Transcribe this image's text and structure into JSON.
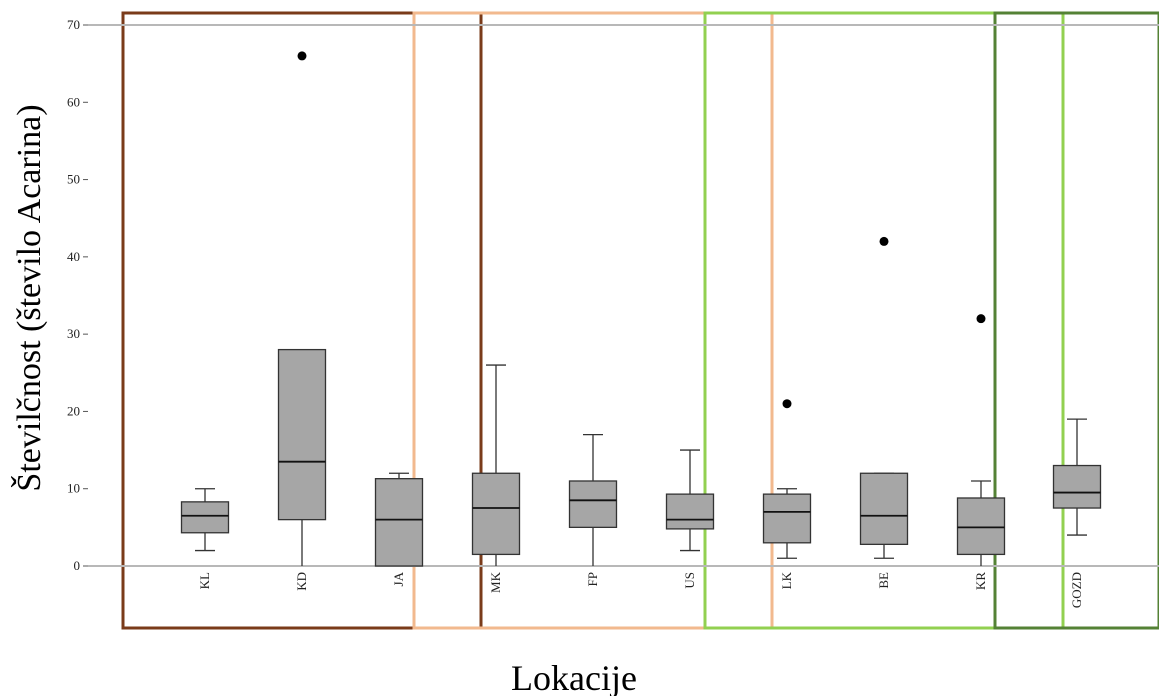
{
  "chart_data": {
    "type": "box",
    "xlabel": "Lokacije",
    "ylabel": "Številčnost (število Acarina)",
    "ylim": [
      0,
      70
    ],
    "yticks": [
      0,
      10,
      20,
      30,
      40,
      50,
      60,
      70
    ],
    "grid": false,
    "categories": [
      "KL",
      "KD",
      "JA",
      "MK",
      "FP",
      "US",
      "LK",
      "BE",
      "KR",
      "GOZD"
    ],
    "boxes": [
      {
        "name": "KL",
        "min": 2,
        "q1": 4.3,
        "median": 6.5,
        "q3": 8.3,
        "max": 10,
        "outliers": []
      },
      {
        "name": "KD",
        "min": 0,
        "q1": 6,
        "median": 13.5,
        "q3": 28,
        "max": 28,
        "outliers": [
          66
        ]
      },
      {
        "name": "JA",
        "min": 0,
        "q1": 0,
        "median": 6,
        "q3": 11.3,
        "max": 12,
        "outliers": []
      },
      {
        "name": "MK",
        "min": 0,
        "q1": 1.5,
        "median": 7.5,
        "q3": 12,
        "max": 26,
        "outliers": []
      },
      {
        "name": "FP",
        "min": 0,
        "q1": 5,
        "median": 8.5,
        "q3": 11,
        "max": 17,
        "outliers": []
      },
      {
        "name": "US",
        "min": 2,
        "q1": 4.8,
        "median": 6,
        "q3": 9.3,
        "max": 15,
        "outliers": []
      },
      {
        "name": "LK",
        "min": 1,
        "q1": 3,
        "median": 7,
        "q3": 9.3,
        "max": 10,
        "outliers": [
          21
        ]
      },
      {
        "name": "BE",
        "min": 1,
        "q1": 2.8,
        "median": 6.5,
        "q3": 12,
        "max": 12,
        "outliers": [
          42
        ]
      },
      {
        "name": "KR",
        "min": 0,
        "q1": 1.5,
        "median": 5,
        "q3": 8.8,
        "max": 11,
        "outliers": [
          32
        ]
      },
      {
        "name": "GOZD",
        "min": 4,
        "q1": 7.5,
        "median": 9.5,
        "q3": 13,
        "max": 19,
        "outliers": []
      }
    ],
    "groups": [
      {
        "categories": [
          "KL",
          "KD",
          "JA"
        ],
        "color": "#7a3b1a"
      },
      {
        "categories": [
          "MK",
          "FP",
          "US"
        ],
        "color": "#f2b98e"
      },
      {
        "categories": [
          "LK",
          "BE",
          "KR"
        ],
        "color": "#92d050"
      },
      {
        "categories": [
          "GOZD"
        ],
        "color": "#548235"
      }
    ],
    "colors": {
      "box_fill": "#a6a6a6",
      "box_stroke": "#333333",
      "reference_line": "#b8b8b8",
      "outlier": "#000000"
    }
  }
}
